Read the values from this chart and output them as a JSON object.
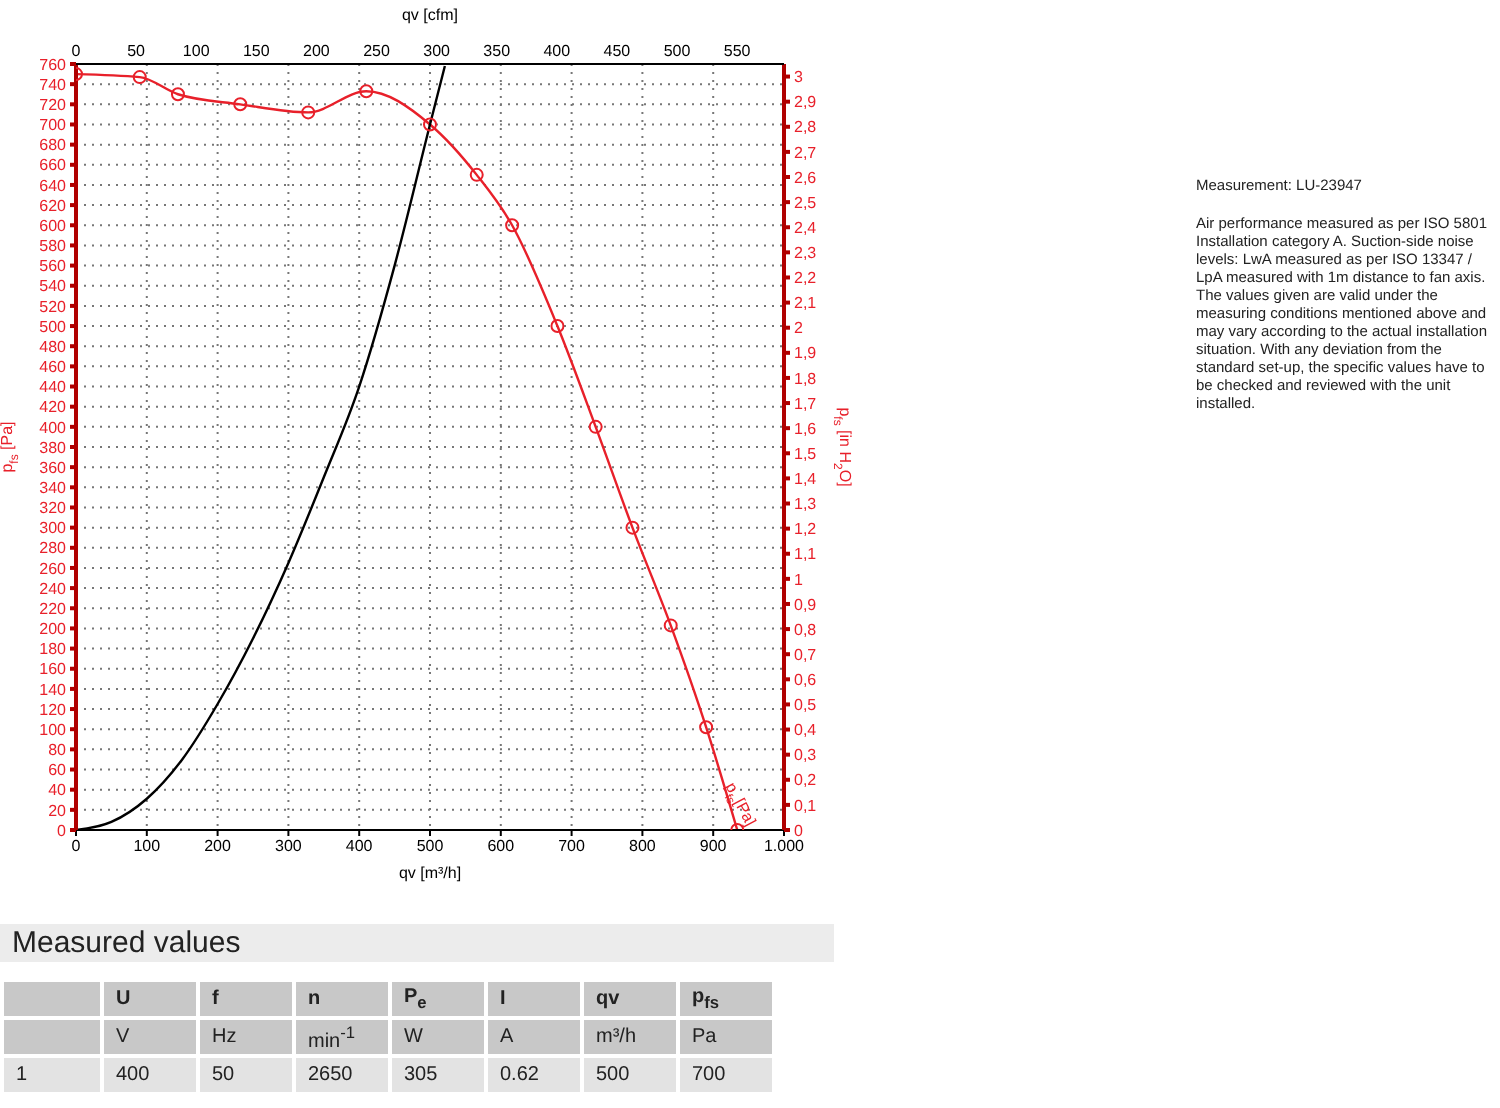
{
  "chart_data": [
    {
      "type": "line",
      "xlabel": "qv [m³/h]",
      "x2label": "qv [cfm]",
      "ylabel": "p$_{fs}$ [Pa]",
      "y2label": "p$_{fs}$ [in H$_{2}$O]",
      "xlim": [
        0,
        1000
      ],
      "xticks": [
        0,
        100,
        200,
        300,
        400,
        500,
        600,
        700,
        800,
        900,
        {
          "value": 1000,
          "label": "1.000"
        }
      ],
      "x2lim": [
        0,
        589
      ],
      "x2ticks": [
        0,
        50,
        100,
        150,
        200,
        250,
        300,
        350,
        400,
        450,
        500,
        550
      ],
      "ylim": [
        0,
        760
      ],
      "yticks": [
        0,
        20,
        40,
        60,
        80,
        100,
        120,
        140,
        160,
        180,
        200,
        220,
        240,
        260,
        280,
        300,
        320,
        340,
        360,
        380,
        400,
        420,
        440,
        460,
        480,
        500,
        520,
        540,
        560,
        580,
        600,
        620,
        640,
        660,
        680,
        700,
        720,
        740,
        760
      ],
      "y2lim": [
        0,
        3.05
      ],
      "y2ticks": [
        0,
        {
          "value": 0.1,
          "label": "0,1"
        },
        {
          "value": 0.2,
          "label": "0,2"
        },
        {
          "value": 0.3,
          "label": "0,3"
        },
        {
          "value": 0.4,
          "label": "0,4"
        },
        {
          "value": 0.5,
          "label": "0,5"
        },
        {
          "value": 0.6,
          "label": "0,6"
        },
        {
          "value": 0.7,
          "label": "0,7"
        },
        {
          "value": 0.8,
          "label": "0,8"
        },
        {
          "value": 0.9,
          "label": "0,9"
        },
        1,
        {
          "value": 1.1,
          "label": "1,1"
        },
        {
          "value": 1.2,
          "label": "1,2"
        },
        {
          "value": 1.3,
          "label": "1,3"
        },
        {
          "value": 1.4,
          "label": "1,4"
        },
        {
          "value": 1.5,
          "label": "1,5"
        },
        {
          "value": 1.6,
          "label": "1,6"
        },
        {
          "value": 1.7,
          "label": "1,7"
        },
        {
          "value": 1.8,
          "label": "1,8"
        },
        {
          "value": 1.9,
          "label": "1,9"
        },
        2,
        {
          "value": 2.1,
          "label": "2,1"
        },
        {
          "value": 2.2,
          "label": "2,2"
        },
        {
          "value": 2.3,
          "label": "2,3"
        },
        {
          "value": 2.4,
          "label": "2,4"
        },
        {
          "value": 2.5,
          "label": "2,5"
        },
        {
          "value": 2.6,
          "label": "2,6"
        },
        {
          "value": 2.7,
          "label": "2,7"
        },
        {
          "value": 2.8,
          "label": "2,8"
        },
        {
          "value": 2.9,
          "label": "2,9"
        },
        3
      ],
      "grid": true,
      "legend": false,
      "line_style": "solid",
      "series": [
        {
          "name": "p$_{fs}$[Pa]",
          "color": "#e8202a",
          "marker": "circle",
          "x": [
            0,
            90,
            144,
            232,
            328,
            410,
            500,
            566,
            616,
            680,
            734,
            786,
            840,
            890,
            934
          ],
          "values": [
            750,
            747,
            730,
            720,
            712,
            733,
            700,
            650,
            600,
            500,
            400,
            300,
            203,
            102,
            0
          ]
        },
        {
          "color": "#000000",
          "marker": "none",
          "x": [
            0,
            50,
            100,
            150,
            200,
            250,
            300,
            350,
            400,
            450,
            500,
            521
          ],
          "values": [
            0,
            8,
            31,
            70,
            125,
            190,
            265,
            350,
            440,
            560,
            700,
            758
          ]
        }
      ]
    },
    {
      "type": "other",
      "annotations": [
        "Measurement: LU-23947",
        "Air performance measured as per ISO 5801 Installation category A. Suction-side noise levels: LwA measured as per ISO 13347 / LpA measured with 1m distance to fan axis. The values given are valid under the measuring conditions mentioned above and may vary according to the actual installation situation. With any deviation from the standard set-up, the specific values have to be checked and reviewed with the unit installed."
      ]
    },
    {
      "type": "other",
      "title": "Measured values",
      "categories": [
        "U",
        "f",
        "n",
        "P$_{e}$",
        "I",
        "qv",
        "p$_{fs}$"
      ],
      "y_categories": [
        null,
        "1"
      ],
      "cell_labels": [
        [
          "V",
          "Hz",
          "min$^{-1}$",
          "W",
          "A",
          "m³/h",
          "Pa"
        ],
        [
          "400",
          "50",
          "2650",
          "305",
          "0.62",
          "500",
          "700"
        ]
      ]
    }
  ]
}
